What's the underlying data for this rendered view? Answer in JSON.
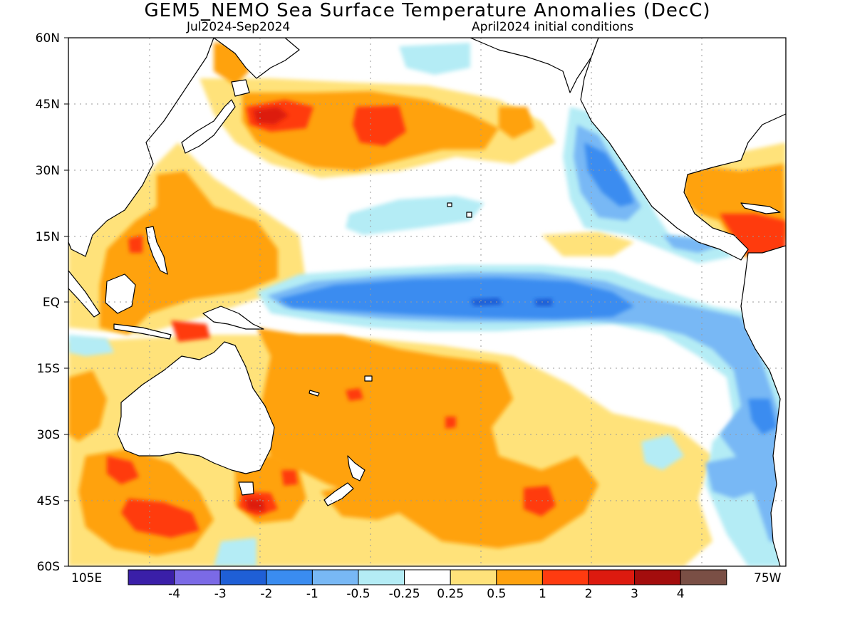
{
  "title": "GEM5_NEMO Sea Surface Temperature Anomalies (DecC)",
  "subtitle_left": "Jul2024-Sep2024",
  "subtitle_right": "April2024 initial conditions",
  "lat_labels": [
    "60N",
    "45N",
    "30N",
    "15N",
    "EQ",
    "15S",
    "30S",
    "45S",
    "60S"
  ],
  "lon_left": "105E",
  "lon_right": "75W",
  "colorbar": {
    "colors": [
      "#3a1fa8",
      "#7b6ae6",
      "#1f5fd6",
      "#3a8cf0",
      "#78b8f5",
      "#b4ecf5",
      "#ffffff",
      "#ffe27a",
      "#ffa20f",
      "#ff3b10",
      "#dd1a0f",
      "#a30d0d",
      "#7a4f45"
    ],
    "labels": [
      "-4",
      "-3",
      "-2",
      "-1",
      "-0.5",
      "-0.25",
      "0.25",
      "0.5",
      "1",
      "2",
      "3",
      "4"
    ]
  },
  "colors": {
    "land_fill": "#ffffff",
    "coastline": "#000000",
    "grid": "#9a9a9a"
  }
}
